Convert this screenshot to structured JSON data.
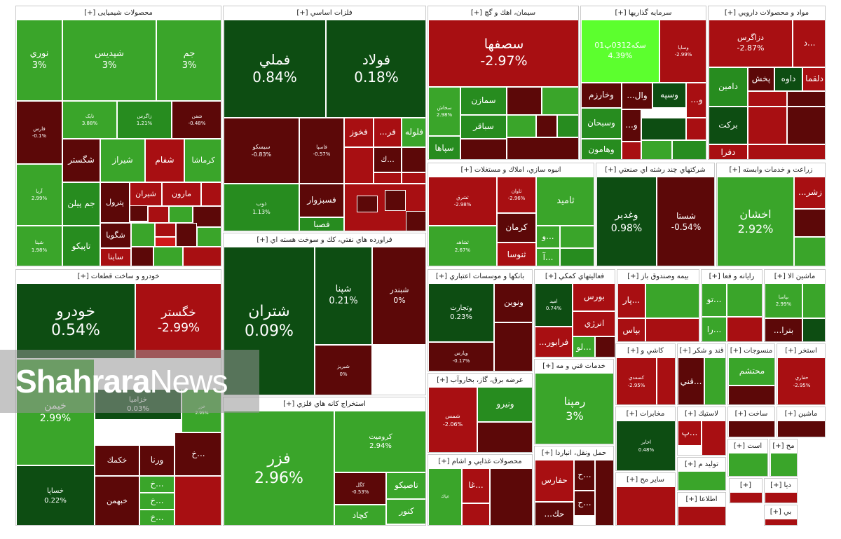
{
  "palette": {
    "bright_green": "#2ecc1f",
    "green": "#3aa52a",
    "mid_green": "#278c1f",
    "dark_green": "#0d4d12",
    "dark_red": "#5c0808",
    "red": "#a80f12",
    "bright_red": "#d11a1a",
    "lime": "#5cff2e"
  },
  "watermark": {
    "part1": "Shahrara",
    "part2": "News"
  },
  "sectors": [
    {
      "title": "محصولات شیمیایی [+]",
      "tiles": [
        {
          "sym": "نوري",
          "pct": "3%",
          "color": "green"
        },
        {
          "sym": "شپديس",
          "pct": "3%",
          "color": "green"
        },
        {
          "sym": "جم",
          "pct": "3%",
          "color": "green"
        },
        {
          "sym": "فارس",
          "pct": "-0.1%",
          "color": "dark_red"
        },
        {
          "sym": "نايک",
          "pct": "3.88%",
          "color": "green"
        },
        {
          "sym": "زاگرس",
          "pct": "1.21%",
          "color": "mid_green"
        },
        {
          "sym": "شفن",
          "pct": "-0.48%",
          "color": "dark_red"
        },
        {
          "sym": "شگستر",
          "pct": "",
          "color": "dark_red"
        },
        {
          "sym": "شيراز",
          "pct": "",
          "color": "green"
        },
        {
          "sym": "شفام",
          "pct": "",
          "color": "red"
        },
        {
          "sym": "كرماشا",
          "pct": "",
          "color": "green"
        },
        {
          "sym": "آريا",
          "pct": "2.99%",
          "color": "green"
        },
        {
          "sym": "جم پيلن",
          "pct": "",
          "color": "mid_green"
        },
        {
          "sym": "پترول",
          "pct": "",
          "color": "dark_red"
        },
        {
          "sym": "شيران",
          "pct": "",
          "color": "red"
        },
        {
          "sym": "مارون",
          "pct": "",
          "color": "red"
        },
        {
          "sym": "شگويا",
          "pct": "",
          "color": "dark_red"
        },
        {
          "sym": "شپنا",
          "pct": "1.98%",
          "color": "green"
        },
        {
          "sym": "تاپيكو",
          "pct": "",
          "color": "mid_green"
        },
        {
          "sym": "ساينا",
          "pct": "",
          "color": "red"
        }
      ]
    },
    {
      "title": "فلزات اساسي [+]",
      "tiles": [
        {
          "sym": "فملي",
          "pct": "0.84%",
          "color": "dark_green"
        },
        {
          "sym": "فولاد",
          "pct": "0.18%",
          "color": "dark_green"
        },
        {
          "sym": "سيسكو",
          "pct": "-0.83%",
          "color": "dark_red"
        },
        {
          "sym": "فاسپا",
          "pct": "-0.57%",
          "color": "dark_red"
        },
        {
          "sym": "فخوز",
          "pct": "",
          "color": "red"
        },
        {
          "sym": "فر...",
          "pct": "",
          "color": "red"
        },
        {
          "sym": "فلوله",
          "pct": "",
          "color": "green"
        },
        {
          "sym": "...ك",
          "pct": "",
          "color": "dark_red"
        },
        {
          "sym": "ذوب",
          "pct": "1.13%",
          "color": "mid_green"
        },
        {
          "sym": "فسبزوار",
          "pct": "",
          "color": "dark_red"
        },
        {
          "sym": "فصبا",
          "pct": "",
          "color": "mid_green"
        }
      ]
    },
    {
      "title": "سيمان، اهك و گچ [+]",
      "tiles": [
        {
          "sym": "سصفها",
          "pct": "-2.97%",
          "color": "red"
        },
        {
          "sym": "سخاش",
          "pct": "2.98%",
          "color": "green"
        },
        {
          "sym": "سمازن",
          "pct": "",
          "color": "mid_green"
        },
        {
          "sym": "سباقر",
          "pct": "",
          "color": "mid_green"
        },
        {
          "sym": "سپاها",
          "pct": "",
          "color": "mid_green"
        }
      ]
    },
    {
      "title": "سرمايه گذاريها [+]",
      "tiles": [
        {
          "sym": "سكه0312پ01",
          "pct": "4.39%",
          "color": "lime"
        },
        {
          "sym": "وساپا",
          "pct": "-2.99%",
          "color": "red"
        },
        {
          "sym": "وخارزم",
          "pct": "",
          "color": "dark_red"
        },
        {
          "sym": "وال...",
          "pct": "",
          "color": "dark_red"
        },
        {
          "sym": "وسپه",
          "pct": "",
          "color": "dark_green"
        },
        {
          "sym": "و...",
          "pct": "",
          "color": "red"
        },
        {
          "sym": "وسبحان",
          "pct": "",
          "color": "mid_green"
        },
        {
          "sym": "و...",
          "pct": "",
          "color": "dark_red"
        },
        {
          "sym": "وهامون",
          "pct": "",
          "color": "mid_green"
        }
      ]
    },
    {
      "title": "مواد و محصولات دارويي [+]",
      "tiles": [
        {
          "sym": "دزاگرس",
          "pct": "-2.87%",
          "color": "red"
        },
        {
          "sym": "...د",
          "pct": "",
          "color": "red"
        },
        {
          "sym": "دامين",
          "pct": "",
          "color": "mid_green"
        },
        {
          "sym": "پخش",
          "pct": "",
          "color": "dark_red"
        },
        {
          "sym": "داوه",
          "pct": "",
          "color": "dark_green"
        },
        {
          "sym": "دلقما",
          "pct": "",
          "color": "red"
        },
        {
          "sym": "بركت",
          "pct": "",
          "color": "dark_green"
        },
        {
          "sym": "دفرا",
          "pct": "",
          "color": "red"
        }
      ]
    },
    {
      "title": "انبوه سازي، املاك و مستغلات [+]",
      "tiles": [
        {
          "sym": "ثشرق",
          "pct": "-2.98%",
          "color": "red"
        },
        {
          "sym": "ثاوان",
          "pct": "-2.96%",
          "color": "red"
        },
        {
          "sym": "ثامید",
          "pct": "",
          "color": "green"
        },
        {
          "sym": "كرمان",
          "pct": "",
          "color": "dark_red"
        },
        {
          "sym": "ثشاهد",
          "pct": "2.67%",
          "color": "green"
        },
        {
          "sym": "ثنوسا",
          "pct": "",
          "color": "red"
        },
        {
          "sym": "...و",
          "pct": "",
          "color": "green"
        },
        {
          "sym": "...آ",
          "pct": "",
          "color": "green"
        }
      ]
    },
    {
      "title": "شركتهاي چند رشته اي صنعتي [+]",
      "tiles": [
        {
          "sym": "وغدير",
          "pct": "0.98%",
          "color": "dark_green"
        },
        {
          "sym": "شستا",
          "pct": "-0.54%",
          "color": "dark_red"
        }
      ]
    },
    {
      "title": "زراعت و خدمات وابسته [+]",
      "tiles": [
        {
          "sym": "زشر...",
          "pct": "",
          "color": "red"
        },
        {
          "sym": "اخشان",
          "pct": "2.92%",
          "color": "green"
        }
      ]
    },
    {
      "title": "خودرو و ساخت قطعات [+]",
      "tiles": [
        {
          "sym": "خودرو",
          "pct": "0.54%",
          "color": "dark_green"
        },
        {
          "sym": "خگستر",
          "pct": "-2.99%",
          "color": "red"
        },
        {
          "sym": "خيمن",
          "pct": "2.99%",
          "color": "green"
        },
        {
          "sym": "خزاميا",
          "pct": "0.03%",
          "color": "dark_green"
        },
        {
          "sym": "خزر",
          "pct": "2.95%",
          "color": "green"
        },
        {
          "sym": "خكمك",
          "pct": "",
          "color": "dark_red"
        },
        {
          "sym": "ورنا",
          "pct": "",
          "color": "dark_red"
        },
        {
          "sym": "...خ",
          "pct": "",
          "color": "dark_red"
        },
        {
          "sym": "خساپا",
          "pct": "0.22%",
          "color": "dark_green"
        },
        {
          "sym": "خبهمن",
          "pct": "",
          "color": "dark_red"
        },
        {
          "sym": "...خ",
          "pct": "",
          "color": "green"
        },
        {
          "sym": "...خ",
          "pct": "",
          "color": "green"
        },
        {
          "sym": "...خ",
          "pct": "",
          "color": "green"
        }
      ]
    },
    {
      "title": "فراورده هاي نفتي، كك و سوخت هسته اي [+]",
      "tiles": [
        {
          "sym": "شتران",
          "pct": "0.09%",
          "color": "dark_green"
        },
        {
          "sym": "شپنا",
          "pct": "0.21%",
          "color": "dark_green"
        },
        {
          "sym": "شبندر",
          "pct": "0%",
          "color": "dark_red"
        },
        {
          "sym": "شبريز",
          "pct": "0%",
          "color": "dark_red"
        }
      ]
    },
    {
      "title": "استخراج كانه هاي فلزي [+]",
      "tiles": [
        {
          "sym": "فزر",
          "pct": "2.96%",
          "color": "green"
        },
        {
          "sym": "كروميت",
          "pct": "2.94%",
          "color": "green"
        },
        {
          "sym": "كگل",
          "pct": "-0.53%",
          "color": "dark_red"
        },
        {
          "sym": "تاصيكو",
          "pct": "",
          "color": "green"
        },
        {
          "sym": "كنور",
          "pct": "",
          "color": "green"
        },
        {
          "sym": "كچاد",
          "pct": "",
          "color": "green"
        }
      ]
    },
    {
      "title": "بانكها و موسسات اعتباري [+]",
      "tiles": [
        {
          "sym": "ونوين",
          "pct": "",
          "color": "dark_red"
        },
        {
          "sym": "وتجارت",
          "pct": "0.23%",
          "color": "dark_green"
        },
        {
          "sym": "وپارس",
          "pct": "-0.17%",
          "color": "dark_red"
        }
      ]
    },
    {
      "title": "فعاليتهاي كمكي [+]",
      "tiles": [
        {
          "sym": "اميد",
          "pct": "0.74%",
          "color": "dark_green"
        },
        {
          "sym": "بورس",
          "pct": "",
          "color": "red"
        },
        {
          "sym": "انرژي",
          "pct": "",
          "color": "red"
        },
        {
          "sym": "فرابور...",
          "pct": "",
          "color": "red"
        },
        {
          "sym": "...لو",
          "pct": "",
          "color": "green"
        }
      ]
    },
    {
      "title": "بيمه وصندوق باز [+]",
      "tiles": [
        {
          "sym": "...پار",
          "pct": "",
          "color": "red"
        },
        {
          "sym": "بپاس",
          "pct": "",
          "color": "red"
        }
      ]
    },
    {
      "title": "رايانه و فعا [+]",
      "tiles": [
        {
          "sym": "...تو",
          "pct": "",
          "color": "green"
        },
        {
          "sym": "...را",
          "pct": "",
          "color": "green"
        }
      ]
    },
    {
      "title": "ماشين الا [+]",
      "tiles": [
        {
          "sym": "بپاسا",
          "pct": "2.99%",
          "color": "green"
        },
        {
          "sym": "بترا...",
          "pct": "",
          "color": "dark_red"
        }
      ]
    },
    {
      "title": "عرضه برق، گاز، بخاروآب [+]",
      "tiles": [
        {
          "sym": "ونيرو",
          "pct": "",
          "color": "mid_green"
        },
        {
          "sym": "شمس",
          "pct": "-2.06%",
          "color": "red"
        }
      ]
    },
    {
      "title": "خدمات فني و مه [+]",
      "tiles": [
        {
          "sym": "رمپنا",
          "pct": "3%",
          "color": "green"
        }
      ]
    },
    {
      "title": "كاشي و [+]",
      "tiles": [
        {
          "sym": "كسعدي",
          "pct": "-2.95%",
          "color": "red"
        }
      ]
    },
    {
      "title": "قند و شكر [+]",
      "tiles": [
        {
          "sym": "...قني",
          "pct": "",
          "color": "dark_red"
        }
      ]
    },
    {
      "title": "منسوجات [+]",
      "tiles": [
        {
          "sym": "محتشم",
          "pct": "",
          "color": "green"
        }
      ]
    },
    {
      "title": "استخر [+]",
      "tiles": [
        {
          "sym": "حفاري",
          "pct": "-2.95%",
          "color": "red"
        }
      ]
    },
    {
      "title": "محصولات غذايي و اشام [+]",
      "tiles": [
        {
          "sym": "غپاك",
          "pct": "",
          "color": "green"
        },
        {
          "sym": "...غا",
          "pct": "",
          "color": "red"
        }
      ]
    },
    {
      "title": "حمل ونقل، انباردا [+]",
      "tiles": [
        {
          "sym": "حفارس",
          "pct": "",
          "color": "red"
        },
        {
          "sym": "...ح",
          "pct": "",
          "color": "dark_red"
        },
        {
          "sym": "حك...",
          "pct": "",
          "color": "dark_red"
        },
        {
          "sym": "...ح",
          "pct": "",
          "color": "dark_red"
        }
      ]
    },
    {
      "title": "مخابرات [+]",
      "tiles": [
        {
          "sym": "اخابر",
          "pct": "0.48%",
          "color": "dark_green"
        }
      ]
    },
    {
      "title": "سایر مح [+]",
      "tiles": []
    },
    {
      "title": "لاستيك [+]",
      "tiles": [
        {
          "sym": "...پ",
          "pct": "",
          "color": "red"
        }
      ]
    },
    {
      "title": "توليد م [+]",
      "tiles": []
    },
    {
      "title": "اطلاعا [+]",
      "tiles": []
    },
    {
      "title": "ساخت [+]",
      "tiles": []
    },
    {
      "title": "ماشين [+]",
      "tiles": []
    },
    {
      "title": "است [+]",
      "tiles": []
    },
    {
      "title": "مح [+]",
      "tiles": []
    },
    {
      "title": "[+]",
      "tiles": []
    },
    {
      "title": "ديا [+]",
      "tiles": []
    },
    {
      "title": "بي [+]",
      "tiles": []
    }
  ]
}
